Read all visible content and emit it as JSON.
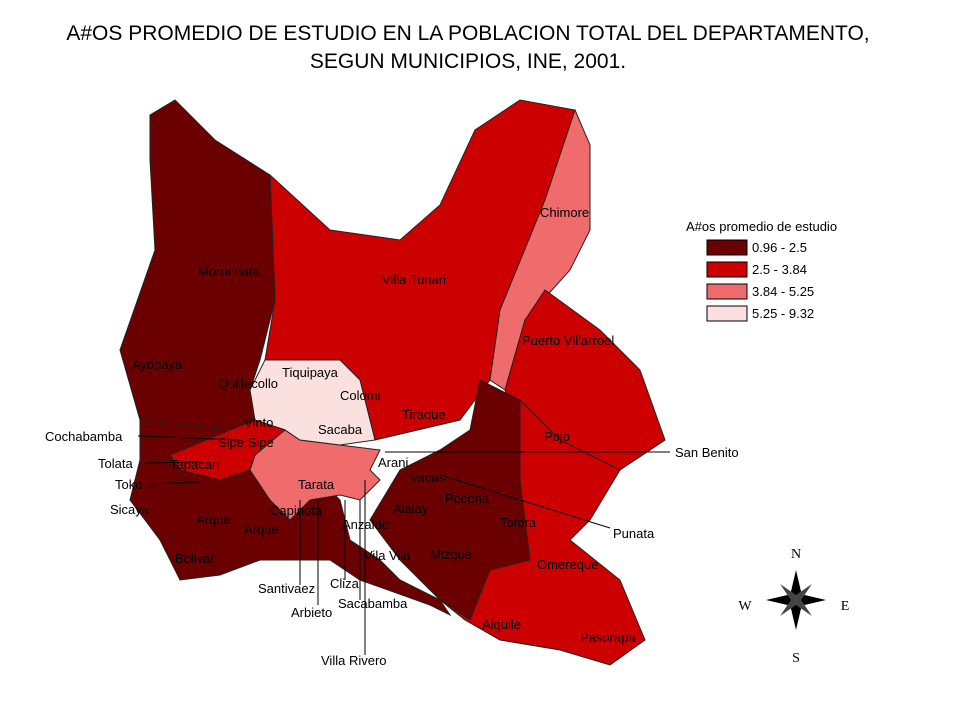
{
  "title": {
    "line1": "A#OS PROMEDIO DE ESTUDIO EN LA POBLACION TOTAL DEL DEPARTAMENTO,",
    "line2": "SEGUN MUNICIPIOS, INE, 2001."
  },
  "legend": {
    "title": "A#os promedio de estudio",
    "items": [
      {
        "label": "0.96 - 2.5",
        "color": "#6b0000"
      },
      {
        "label": "2.5 - 3.84",
        "color": "#cc0000"
      },
      {
        "label": "3.84 - 5.25",
        "color": "#f06b6b"
      },
      {
        "label": "5.25 - 9.32",
        "color": "#fbe0e0"
      }
    ]
  },
  "map": {
    "labels": [
      "Morochata",
      "Villa Tunari",
      "Chimore",
      "Puerto Villarroel",
      "Ayopaya",
      "Quillacollo",
      "Tiquipaya",
      "Colomi",
      "Tiraque",
      "Vinto",
      "Sacaba",
      "Cochabamba",
      "Sipe Sipe",
      "Tolata",
      "Tapacari",
      "Toko",
      "Tarata",
      "Arani",
      "Vacas",
      "Pocona",
      "Pojo",
      "San Benito",
      "Sicaya",
      "Arque",
      "Capinota",
      "Anzaldo",
      "Alalay",
      "Totora",
      "Punata",
      "Arque",
      "Bolivar",
      "Omereque",
      "Mizque",
      "Vila Vila",
      "Santivaez",
      "Cliza",
      "Sacabamba",
      "Arbieto",
      "Aiquile",
      "Pasorapa",
      "Villa Rivero"
    ]
  },
  "compass": {
    "n": "N",
    "s": "S",
    "e": "E",
    "w": "W"
  }
}
